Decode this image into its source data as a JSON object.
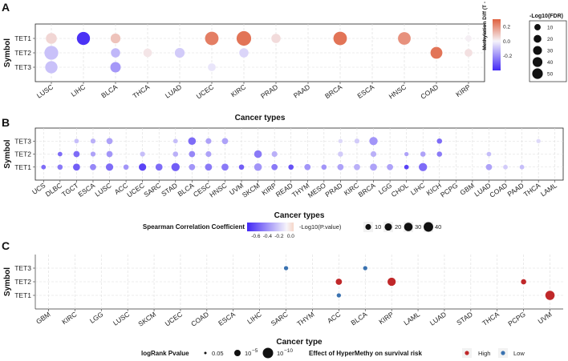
{
  "chart_data": [
    {
      "panel": "A",
      "type": "scatter",
      "xlabel": "Cancer types",
      "ylabel": "Symbol",
      "categories": [
        "LUSC",
        "LIHC",
        "BLCA",
        "THCA",
        "LUAD",
        "UCEC",
        "KIRC",
        "PRAD",
        "PAAD",
        "BRCA",
        "ESCA",
        "HNSC",
        "COAD",
        "KIRP"
      ],
      "rows": [
        "TET1",
        "TET2",
        "TET3"
      ],
      "color_legend": {
        "title": "Methylation Diff (T - N)",
        "ticks": [
          "0.2",
          "0.0",
          "-0.2"
        ],
        "range": [
          -0.4,
          0.3
        ]
      },
      "size_legend": {
        "title": "-Log10(FDR)",
        "ticks": [
          "10",
          "20",
          "30",
          "40",
          "50"
        ]
      },
      "points": [
        {
          "row": "TET1",
          "x": "LUSC",
          "diff": 0.06,
          "size": 16
        },
        {
          "row": "TET1",
          "x": "LIHC",
          "diff": -0.38,
          "size": 26
        },
        {
          "row": "TET1",
          "x": "BLCA",
          "diff": 0.1,
          "size": 12
        },
        {
          "row": "TET1",
          "x": "UCEC",
          "diff": 0.24,
          "size": 28
        },
        {
          "row": "TET1",
          "x": "KIRC",
          "diff": 0.26,
          "size": 34
        },
        {
          "row": "TET1",
          "x": "PRAD",
          "diff": 0.05,
          "size": 10
        },
        {
          "row": "TET1",
          "x": "BRCA",
          "diff": 0.26,
          "size": 28
        },
        {
          "row": "TET1",
          "x": "HNSC",
          "diff": 0.2,
          "size": 24
        },
        {
          "row": "TET1",
          "x": "KIRP",
          "diff": 0.01,
          "size": 3
        },
        {
          "row": "TET2",
          "x": "LUSC",
          "diff": -0.1,
          "size": 30
        },
        {
          "row": "TET2",
          "x": "BLCA",
          "diff": -0.12,
          "size": 10
        },
        {
          "row": "TET2",
          "x": "THCA",
          "diff": 0.03,
          "size": 8
        },
        {
          "row": "TET2",
          "x": "LUAD",
          "diff": -0.08,
          "size": 12
        },
        {
          "row": "TET2",
          "x": "KIRC",
          "diff": -0.06,
          "size": 10
        },
        {
          "row": "TET2",
          "x": "COAD",
          "diff": 0.26,
          "size": 20
        },
        {
          "row": "TET2",
          "x": "KIRP",
          "diff": 0.04,
          "size": 6
        },
        {
          "row": "TET3",
          "x": "LUSC",
          "diff": -0.1,
          "size": 22
        },
        {
          "row": "TET3",
          "x": "BLCA",
          "diff": -0.18,
          "size": 14
        },
        {
          "row": "TET3",
          "x": "UCEC",
          "diff": -0.03,
          "size": 6
        }
      ]
    },
    {
      "panel": "B",
      "type": "scatter",
      "xlabel": "Cancer types",
      "ylabel": "Symbol",
      "categories": [
        "UCS",
        "DLBC",
        "TGCT",
        "ESCA",
        "LUSC",
        "ACC",
        "UCEC",
        "SARC",
        "STAD",
        "BLCA",
        "CESC",
        "HNSC",
        "UVM",
        "SKCM",
        "KIRP",
        "READ",
        "THYM",
        "MESO",
        "PRAD",
        "KIRC",
        "BRCA",
        "LGG",
        "CHOL",
        "LIHC",
        "KICH",
        "PCPG",
        "GBM",
        "LUAD",
        "COAD",
        "PAAD",
        "THCA",
        "LAML"
      ],
      "rows": [
        "TET3",
        "TET2",
        "TET1"
      ],
      "color_legend": {
        "title": "Spearman Correlation Coefficient",
        "ticks": [
          "-0.6",
          "-0.4",
          "-0.2",
          "0.0"
        ],
        "range": [
          -0.75,
          0.05
        ]
      },
      "size_legend": {
        "title": "-Log10(P.value)",
        "ticks": [
          "10",
          "20",
          "30",
          "40"
        ]
      },
      "points": [
        {
          "row": "TET3",
          "x": "TGCT",
          "coef": -0.2,
          "size": 4
        },
        {
          "row": "TET3",
          "x": "ESCA",
          "coef": -0.25,
          "size": 5
        },
        {
          "row": "TET3",
          "x": "LUSC",
          "coef": -0.3,
          "size": 10
        },
        {
          "row": "TET3",
          "x": "STAD",
          "coef": -0.2,
          "size": 4
        },
        {
          "row": "TET3",
          "x": "BLCA",
          "coef": -0.5,
          "size": 18
        },
        {
          "row": "TET3",
          "x": "CESC",
          "coef": -0.3,
          "size": 8
        },
        {
          "row": "TET3",
          "x": "HNSC",
          "coef": -0.3,
          "size": 10
        },
        {
          "row": "TET3",
          "x": "PRAD",
          "coef": -0.1,
          "size": 3
        },
        {
          "row": "TET3",
          "x": "KIRC",
          "coef": -0.15,
          "size": 5
        },
        {
          "row": "TET3",
          "x": "BRCA",
          "coef": -0.35,
          "size": 22
        },
        {
          "row": "TET3",
          "x": "KICH",
          "coef": -0.5,
          "size": 6
        },
        {
          "row": "TET3",
          "x": "THCA",
          "coef": -0.1,
          "size": 3
        },
        {
          "row": "TET2",
          "x": "DLBC",
          "coef": -0.5,
          "size": 4
        },
        {
          "row": "TET2",
          "x": "TGCT",
          "coef": -0.5,
          "size": 10
        },
        {
          "row": "TET2",
          "x": "ESCA",
          "coef": -0.3,
          "size": 5
        },
        {
          "row": "TET2",
          "x": "LUSC",
          "coef": -0.35,
          "size": 10
        },
        {
          "row": "TET2",
          "x": "UCEC",
          "coef": -0.2,
          "size": 5
        },
        {
          "row": "TET2",
          "x": "STAD",
          "coef": -0.25,
          "size": 6
        },
        {
          "row": "TET2",
          "x": "BLCA",
          "coef": -0.4,
          "size": 10
        },
        {
          "row": "TET2",
          "x": "CESC",
          "coef": -0.3,
          "size": 8
        },
        {
          "row": "TET2",
          "x": "SKCM",
          "coef": -0.45,
          "size": 18
        },
        {
          "row": "TET2",
          "x": "KIRP",
          "coef": -0.25,
          "size": 8
        },
        {
          "row": "TET2",
          "x": "PRAD",
          "coef": -0.15,
          "size": 6
        },
        {
          "row": "TET2",
          "x": "BRCA",
          "coef": -0.25,
          "size": 8
        },
        {
          "row": "TET2",
          "x": "CHOL",
          "coef": -0.3,
          "size": 3
        },
        {
          "row": "TET2",
          "x": "LIHC",
          "coef": -0.3,
          "size": 6
        },
        {
          "row": "TET2",
          "x": "KICH",
          "coef": -0.45,
          "size": 6
        },
        {
          "row": "TET2",
          "x": "LUAD",
          "coef": -0.2,
          "size": 4
        },
        {
          "row": "TET1",
          "x": "UCS",
          "coef": -0.5,
          "size": 4
        },
        {
          "row": "TET1",
          "x": "DLBC",
          "coef": -0.45,
          "size": 6
        },
        {
          "row": "TET1",
          "x": "TGCT",
          "coef": -0.55,
          "size": 14
        },
        {
          "row": "TET1",
          "x": "ESCA",
          "coef": -0.4,
          "size": 10
        },
        {
          "row": "TET1",
          "x": "LUSC",
          "coef": -0.5,
          "size": 16
        },
        {
          "row": "TET1",
          "x": "ACC",
          "coef": -0.35,
          "size": 6
        },
        {
          "row": "TET1",
          "x": "UCEC",
          "coef": -0.65,
          "size": 16
        },
        {
          "row": "TET1",
          "x": "SARC",
          "coef": -0.5,
          "size": 14
        },
        {
          "row": "TET1",
          "x": "STAD",
          "coef": -0.55,
          "size": 22
        },
        {
          "row": "TET1",
          "x": "BLCA",
          "coef": -0.35,
          "size": 10
        },
        {
          "row": "TET1",
          "x": "CESC",
          "coef": -0.45,
          "size": 14
        },
        {
          "row": "TET1",
          "x": "HNSC",
          "coef": -0.45,
          "size": 14
        },
        {
          "row": "TET1",
          "x": "UVM",
          "coef": -0.55,
          "size": 6
        },
        {
          "row": "TET1",
          "x": "SKCM",
          "coef": -0.35,
          "size": 18
        },
        {
          "row": "TET1",
          "x": "KIRP",
          "coef": -0.45,
          "size": 10
        },
        {
          "row": "TET1",
          "x": "READ",
          "coef": -0.6,
          "size": 6
        },
        {
          "row": "TET1",
          "x": "THYM",
          "coef": -0.35,
          "size": 10
        },
        {
          "row": "TET1",
          "x": "MESO",
          "coef": -0.35,
          "size": 6
        },
        {
          "row": "TET1",
          "x": "PRAD",
          "coef": -0.3,
          "size": 10
        },
        {
          "row": "TET1",
          "x": "KIRC",
          "coef": -0.25,
          "size": 10
        },
        {
          "row": "TET1",
          "x": "BRCA",
          "coef": -0.3,
          "size": 14
        },
        {
          "row": "TET1",
          "x": "LGG",
          "coef": -0.3,
          "size": 10
        },
        {
          "row": "TET1",
          "x": "CHOL",
          "coef": -0.65,
          "size": 4
        },
        {
          "row": "TET1",
          "x": "LIHC",
          "coef": -0.5,
          "size": 22
        },
        {
          "row": "TET1",
          "x": "LUAD",
          "coef": -0.3,
          "size": 10
        },
        {
          "row": "TET1",
          "x": "COAD",
          "coef": -0.15,
          "size": 4
        },
        {
          "row": "TET1",
          "x": "PAAD",
          "coef": -0.2,
          "size": 4
        }
      ]
    },
    {
      "panel": "C",
      "type": "scatter",
      "xlabel": "Cancer type",
      "ylabel": "Symbol",
      "categories": [
        "GBM",
        "KIRC",
        "LGG",
        "LUSC",
        "SKCM",
        "UCEC",
        "COAD",
        "ESCA",
        "LIHC",
        "SARC",
        "THYM",
        "ACC",
        "BLCA",
        "KIRP",
        "LAML",
        "LUAD",
        "STAD",
        "THCA",
        "PCPG",
        "UVM"
      ],
      "rows": [
        "TET3",
        "TET2",
        "TET1"
      ],
      "size_legend": {
        "title": "logRank Pvalue",
        "ticks": [
          "0.05",
          "10",
          "−5",
          "10",
          "−10"
        ]
      },
      "color_legend": {
        "title": "Effect of HyperMethy on survival risk",
        "levels": [
          "High",
          "Low"
        ],
        "colors": {
          "High": "#c0282a",
          "Low": "#3a72b0"
        }
      },
      "points": [
        {
          "row": "TET3",
          "x": "SARC",
          "effect": "Low",
          "logp": 3
        },
        {
          "row": "TET3",
          "x": "BLCA",
          "effect": "Low",
          "logp": 3
        },
        {
          "row": "TET2",
          "x": "ACC",
          "effect": "High",
          "logp": 5
        },
        {
          "row": "TET2",
          "x": "KIRP",
          "effect": "High",
          "logp": 7
        },
        {
          "row": "TET2",
          "x": "PCPG",
          "effect": "High",
          "logp": 4
        },
        {
          "row": "TET1",
          "x": "ACC",
          "effect": "Low",
          "logp": 3
        },
        {
          "row": "TET1",
          "x": "UVM",
          "effect": "High",
          "logp": 8
        }
      ]
    }
  ],
  "labels": {
    "panel_a": "A",
    "panel_b": "B",
    "panel_c": "C"
  }
}
